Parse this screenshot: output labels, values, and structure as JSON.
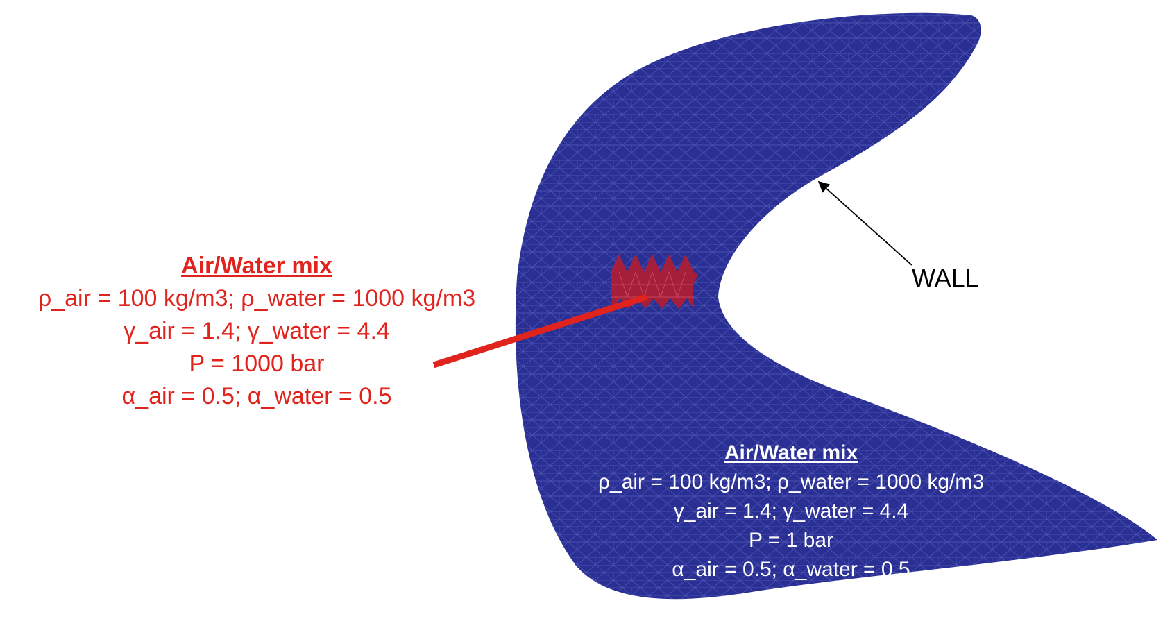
{
  "colors": {
    "domain_fill": "#2a2f94",
    "mesh_line": "#4a50b0",
    "high_pressure_region": "#a51e3a",
    "annotation_red": "#e0231c",
    "pointer_arrow": "#000000"
  },
  "high_pressure_annotation": {
    "title": "Air/Water mix",
    "density_line": "ρ_air = 100 kg/m3; ρ_water = 1000 kg/m3",
    "gamma_line": "γ_air = 1.4; γ_water = 4.4",
    "pressure_line": "P = 1000 bar",
    "alpha_line": "α_air = 0.5; α_water =  0.5"
  },
  "ambient_annotation": {
    "title": "Air/Water mix",
    "density_line": "ρ_air = 100 kg/m3; ρ_water = 1000 kg/m3",
    "gamma_line": "γ_air = 1.4; γ_water = 4.4",
    "pressure_line": "P = 1 bar",
    "alpha_line": "α_air = 0.5; α_water =  0.5"
  },
  "wall_label": "WALL"
}
